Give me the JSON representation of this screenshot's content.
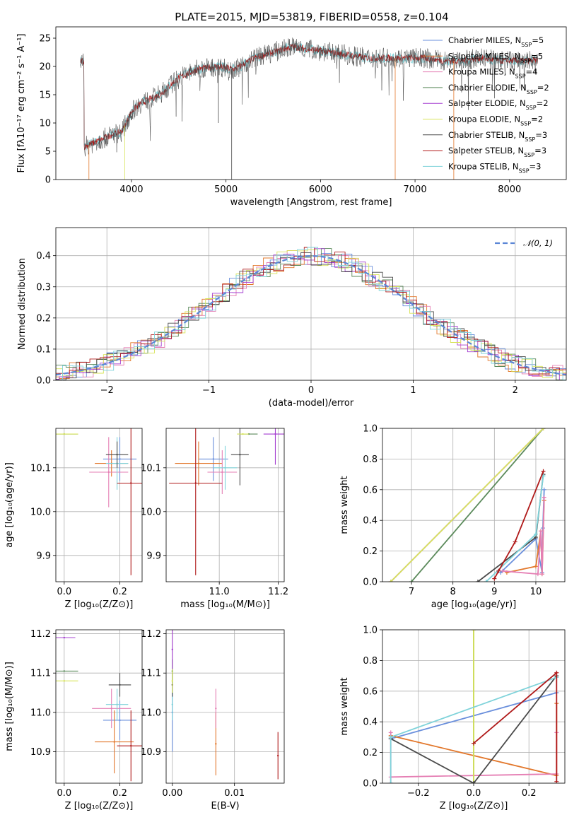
{
  "title": "PLATE=2015, MJD=53819, FIBERID=0558, z=0.104",
  "colors": {
    "Chabrier MILES": "#6a8fdc",
    "Salpeter MILES": "#e2772b",
    "Kroupa MILES": "#e2772b",
    "Chabrier ELODIE": "#5b8a5b",
    "Salpeter ELODIE": "#a53fd0",
    "Kroupa ELODIE": "#d8e45a",
    "Chabrier STELIB": "#4a4a4a",
    "Salpeter STELIB": "#b01a1a",
    "Kroupa STELIB": "#7fd3da",
    "Chabrier MILES pink": "#e57fb4",
    "normal": "#5b86d6"
  },
  "legend": [
    {
      "label": "Chabrier MILES, N",
      "sub": "SSP",
      "tail": "=5",
      "color": "#6a8fdc"
    },
    {
      "label": "Salpeter MILES, N",
      "sub": "SSP",
      "tail": "=5",
      "color": "#e2772b"
    },
    {
      "label": "Kroupa MILES, N",
      "sub": "SSP",
      "tail": "=4",
      "color": "#e57fb4"
    },
    {
      "label": "Chabrier ELODIE, N",
      "sub": "SSP",
      "tail": "=2",
      "color": "#5b8a5b"
    },
    {
      "label": "Salpeter ELODIE, N",
      "sub": "SSP",
      "tail": "=2",
      "color": "#a53fd0"
    },
    {
      "label": "Kroupa ELODIE, N",
      "sub": "SSP",
      "tail": "=2",
      "color": "#d8e45a"
    },
    {
      "label": "Chabrier STELIB, N",
      "sub": "SSP",
      "tail": "=3",
      "color": "#4a4a4a"
    },
    {
      "label": "Salpeter STELIB, N",
      "sub": "SSP",
      "tail": "=3",
      "color": "#b01a1a"
    },
    {
      "label": "Kroupa STELIB, N",
      "sub": "SSP",
      "tail": "=3",
      "color": "#7fd3da"
    }
  ],
  "chart_data": [
    {
      "type": "line",
      "panel": "spectrum",
      "xlabel": "wavelength [Angstrom, rest frame]",
      "ylabel": "Flux [fλ10⁻¹⁷ erg cm⁻² s⁻¹ A⁻¹]",
      "xlim": [
        3200,
        8600
      ],
      "ylim": [
        0,
        27
      ],
      "xticks": [
        4000,
        5000,
        6000,
        7000,
        8000
      ],
      "yticks": [
        0,
        5,
        10,
        15,
        20,
        25
      ],
      "continuum": {
        "x": [
          3500,
          3600,
          3700,
          3800,
          3900,
          4000,
          4100,
          4300,
          4500,
          4700,
          4900,
          5100,
          5300,
          5500,
          5700,
          5900,
          6100,
          6300,
          6500,
          6700,
          6900,
          7100,
          7300,
          7500,
          7700,
          7900,
          8100,
          8300
        ],
        "y": [
          5.8,
          6.5,
          7.2,
          8.0,
          8.5,
          12.0,
          13.5,
          15.0,
          18.0,
          19.5,
          20.0,
          19.5,
          21.5,
          22.5,
          23.5,
          23.0,
          22.5,
          22.0,
          21.5,
          21.5,
          21.5,
          21.5,
          21.0,
          21.0,
          21.5,
          21.0,
          21.0,
          21.0
        ]
      }
    },
    {
      "type": "line",
      "panel": "residuals",
      "xlabel": "(data-model)/error",
      "ylabel": "Normed distribution",
      "xlim": [
        -2.5,
        2.5
      ],
      "ylim": [
        0,
        0.49
      ],
      "xticks": [
        -2,
        -1,
        0,
        1,
        2
      ],
      "yticks": [
        0.0,
        0.1,
        0.2,
        0.3,
        0.4
      ],
      "legend": "𝒩(0, 1)"
    },
    {
      "type": "scatter",
      "panel": "Z-age",
      "xlabel": "Z [log₁₀(Z/Z⊙)]",
      "ylabel": "age  [log₁₀(age/yr)]",
      "xlim": [
        -0.03,
        0.28
      ],
      "ylim": [
        9.84,
        10.19
      ],
      "xticks": [
        0.0,
        0.2
      ],
      "yticks": [
        9.9,
        10.0,
        10.1
      ],
      "points": [
        {
          "x": 0.2,
          "y": 10.12,
          "xerr": 0.06,
          "yerr": 0.05,
          "c": "#6a8fdc"
        },
        {
          "x": 0.17,
          "y": 10.11,
          "xerr": 0.06,
          "yerr": 0.03,
          "c": "#e2772b"
        },
        {
          "x": 0.16,
          "y": 10.09,
          "xerr": 0.07,
          "yerr": 0.08,
          "c": "#e57fb4"
        },
        {
          "x": 0.19,
          "y": 10.11,
          "xerr": 0.04,
          "yerr": 0.06,
          "c": "#7fd3da"
        },
        {
          "x": 0.19,
          "y": 10.13,
          "xerr": 0.04,
          "yerr": 0.03,
          "c": "#4a4a4a"
        },
        {
          "x": 0.24,
          "y": 10.065,
          "xerr": 0.05,
          "yerr": 0.21,
          "c": "#b01a1a"
        },
        {
          "x": 0.0,
          "y": 10.177,
          "xerr": 0.05,
          "yerr": 0.0,
          "c": "#5b8a5b"
        },
        {
          "x": 0.0,
          "y": 10.177,
          "xerr": 0.05,
          "yerr": 0.0,
          "c": "#d8e45a"
        }
      ]
    },
    {
      "type": "scatter",
      "panel": "mass-age",
      "xlabel": "mass [log₁₀(M/M⊙)]",
      "xlim": [
        10.82,
        11.22
      ],
      "ylim": [
        9.84,
        10.19
      ],
      "xticks": [
        11.0,
        11.2
      ],
      "yticks": [
        9.9,
        10.0,
        10.1
      ],
      "points": [
        {
          "x": 10.98,
          "y": 10.12,
          "xerr": 0.05,
          "yerr": 0.05,
          "c": "#6a8fdc"
        },
        {
          "x": 10.93,
          "y": 10.11,
          "xerr": 0.08,
          "yerr": 0.05,
          "c": "#e2772b"
        },
        {
          "x": 11.01,
          "y": 10.09,
          "xerr": 0.05,
          "yerr": 0.05,
          "c": "#e57fb4"
        },
        {
          "x": 11.02,
          "y": 10.1,
          "xerr": 0.04,
          "yerr": 0.05,
          "c": "#7fd3da"
        },
        {
          "x": 11.07,
          "y": 10.13,
          "xerr": 0.03,
          "yerr": 0.07,
          "c": "#4a4a4a"
        },
        {
          "x": 10.92,
          "y": 10.065,
          "xerr": 0.09,
          "yerr": 0.21,
          "c": "#b01a1a"
        },
        {
          "x": 11.1,
          "y": 10.177,
          "xerr": 0.03,
          "yerr": 0.0,
          "c": "#5b8a5b"
        },
        {
          "x": 11.19,
          "y": 10.177,
          "xerr": 0.04,
          "yerr": 0.07,
          "c": "#a53fd0"
        },
        {
          "x": 11.08,
          "y": 10.177,
          "xerr": 0.02,
          "yerr": 0.0,
          "c": "#d8e45a"
        }
      ]
    },
    {
      "type": "line",
      "panel": "age-weight",
      "xlabel": "age  [log₁₀(age/yr)]",
      "ylabel": "mass weight",
      "xlim": [
        6.3,
        10.7
      ],
      "ylim": [
        0,
        1.0
      ],
      "xticks": [
        7,
        8,
        9,
        10
      ],
      "yticks": [
        0.0,
        0.2,
        0.4,
        0.6,
        0.8,
        1.0
      ],
      "series": [
        {
          "c": "#6a8fdc",
          "x": [
            9.15,
            10.0,
            10.15,
            10.17,
            10.2
          ],
          "y": [
            0.06,
            0.28,
            0.06,
            0.35,
            0.6
          ]
        },
        {
          "c": "#e2772b",
          "x": [
            9.3,
            10.0,
            10.12,
            10.15,
            10.2
          ],
          "y": [
            0.06,
            0.1,
            0.33,
            0.05,
            0.53
          ]
        },
        {
          "c": "#e57fb4",
          "x": [
            9.2,
            10.05,
            10.12,
            10.15,
            10.2
          ],
          "y": [
            0.07,
            0.05,
            0.33,
            0.05,
            0.55
          ]
        },
        {
          "c": "#5b8a5b",
          "x": [
            7.0,
            10.18
          ],
          "y": [
            0.0,
            1.0
          ]
        },
        {
          "c": "#a53fd0",
          "x": [
            6.5,
            10.18
          ],
          "y": [
            0.0,
            1.0
          ]
        },
        {
          "c": "#d8e45a",
          "x": [
            6.5,
            10.18
          ],
          "y": [
            0.0,
            1.0
          ]
        },
        {
          "c": "#4a4a4a",
          "x": [
            8.6,
            10.0,
            10.18
          ],
          "y": [
            0.0,
            0.29,
            0.7
          ]
        },
        {
          "c": "#7fd3da",
          "x": [
            8.8,
            10.0,
            10.18
          ],
          "y": [
            0.0,
            0.31,
            0.69
          ]
        },
        {
          "c": "#b01a1a",
          "x": [
            9.0,
            9.1,
            9.5,
            10.18
          ],
          "y": [
            0.02,
            0.07,
            0.26,
            0.72
          ]
        }
      ]
    },
    {
      "type": "scatter",
      "panel": "Z-mass",
      "xlabel": "Z [log₁₀(Z/Z⊙)]",
      "ylabel": "mass [log₁₀(M/M⊙)]",
      "xlim": [
        -0.03,
        0.28
      ],
      "ylim": [
        10.82,
        11.21
      ],
      "xticks": [
        0.0,
        0.2
      ],
      "yticks": [
        10.9,
        11.0,
        11.1,
        11.2
      ],
      "points": [
        {
          "x": 0.2,
          "y": 10.98,
          "xerr": 0.06,
          "yerr": 0.05,
          "c": "#6a8fdc"
        },
        {
          "x": 0.18,
          "y": 10.925,
          "xerr": 0.07,
          "yerr": 0.08,
          "c": "#e2772b"
        },
        {
          "x": 0.17,
          "y": 11.01,
          "xerr": 0.07,
          "yerr": 0.05,
          "c": "#e57fb4"
        },
        {
          "x": 0.19,
          "y": 11.02,
          "xerr": 0.04,
          "yerr": 0.04,
          "c": "#7fd3da"
        },
        {
          "x": 0.2,
          "y": 11.07,
          "xerr": 0.04,
          "yerr": 0.03,
          "c": "#4a4a4a"
        },
        {
          "x": 0.24,
          "y": 10.915,
          "xerr": 0.05,
          "yerr": 0.09,
          "c": "#b01a1a"
        },
        {
          "x": 0.0,
          "y": 11.105,
          "xerr": 0.05,
          "yerr": 0.0,
          "c": "#5b8a5b"
        },
        {
          "x": 0.0,
          "y": 11.19,
          "xerr": 0.04,
          "yerr": 0.0,
          "c": "#a53fd0"
        },
        {
          "x": 0.0,
          "y": 11.08,
          "xerr": 0.05,
          "yerr": 0.0,
          "c": "#d8e45a"
        }
      ]
    },
    {
      "type": "scatter",
      "panel": "EBV-mass",
      "xlabel": "E(B-V)",
      "xlim": [
        -0.001,
        0.018
      ],
      "ylim": [
        10.82,
        11.21
      ],
      "xticks": [
        0.0,
        0.01
      ],
      "yticks": [
        10.9,
        11.0,
        11.1,
        11.2
      ],
      "points": [
        {
          "x": 0.0,
          "y": 11.0,
          "yerr": 0.1,
          "c": "#6a8fdc"
        },
        {
          "x": 0.007,
          "y": 10.92,
          "yerr": 0.08,
          "c": "#e2772b"
        },
        {
          "x": 0.007,
          "y": 11.01,
          "yerr": 0.05,
          "c": "#e57fb4"
        },
        {
          "x": 0.0,
          "y": 11.02,
          "yerr": 0.04,
          "c": "#7fd3da"
        },
        {
          "x": 0.0,
          "y": 11.07,
          "yerr": 0.03,
          "c": "#4a4a4a"
        },
        {
          "x": 0.017,
          "y": 10.89,
          "yerr": 0.06,
          "c": "#b01a1a"
        },
        {
          "x": 0.0,
          "y": 11.105,
          "yerr": 0.03,
          "c": "#5b8a5b"
        },
        {
          "x": 0.0,
          "y": 11.16,
          "yerr": 0.05,
          "c": "#a53fd0"
        },
        {
          "x": 0.0,
          "y": 11.08,
          "yerr": 0.03,
          "c": "#d8e45a"
        }
      ]
    },
    {
      "type": "line",
      "panel": "Z-weight",
      "xlabel": "Z [log₁₀(Z/Z⊙)]",
      "ylabel": "mass weight",
      "xlim": [
        -0.33,
        0.33
      ],
      "ylim": [
        0,
        1.0
      ],
      "xticks": [
        -0.2,
        0.0,
        0.2
      ],
      "yticks": [
        0.0,
        0.2,
        0.4,
        0.6,
        0.8,
        1.0
      ],
      "series": [
        {
          "c": "#6a8fdc",
          "x": [
            -0.3,
            0.3
          ],
          "y": [
            0.29,
            0.59
          ]
        },
        {
          "c": "#e2772b",
          "x": [
            -0.3,
            0.3,
            0.3
          ],
          "y": [
            0.31,
            0.05,
            0.52
          ]
        },
        {
          "c": "#e57fb4",
          "x": [
            -0.3,
            0.3,
            0.3
          ],
          "y": [
            0.04,
            0.06,
            0.33
          ]
        },
        {
          "c": "#e57fb4",
          "x": [
            -0.3,
            -0.3
          ],
          "y": [
            0.0,
            0.33
          ]
        },
        {
          "c": "#5b8a5b",
          "x": [
            0.0,
            0.0
          ],
          "y": [
            0.0,
            1.0
          ]
        },
        {
          "c": "#d8e45a",
          "x": [
            0.0,
            0.0
          ],
          "y": [
            0.0,
            1.0
          ]
        },
        {
          "c": "#4a4a4a",
          "x": [
            -0.3,
            0.0,
            0.3
          ],
          "y": [
            0.29,
            0.0,
            0.7
          ]
        },
        {
          "c": "#7fd3da",
          "x": [
            -0.3,
            -0.3,
            0.3
          ],
          "y": [
            0.0,
            0.3,
            0.69
          ]
        },
        {
          "c": "#b01a1a",
          "x": [
            0.0,
            0.3,
            0.3
          ],
          "y": [
            0.26,
            0.72,
            0.01
          ]
        }
      ]
    }
  ]
}
